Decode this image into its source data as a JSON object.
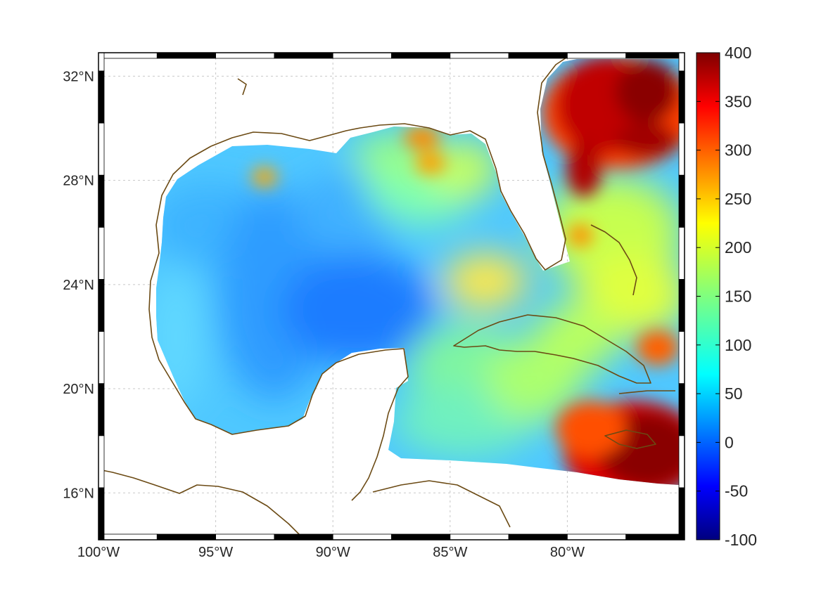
{
  "map": {
    "region": "Gulf of Mexico and Caribbean",
    "lon_range": [
      -100,
      -75
    ],
    "lat_range": [
      14.2,
      32.9
    ],
    "grid": true,
    "frame": "black-and-white checkered border",
    "coastline_color": "#6b4a14",
    "lon_ticks": [
      {
        "value": -100,
        "label": "100°W"
      },
      {
        "value": -95,
        "label": "95°W"
      },
      {
        "value": -90,
        "label": "90°W"
      },
      {
        "value": -85,
        "label": "85°W"
      },
      {
        "value": -80,
        "label": "80°W"
      }
    ],
    "lat_ticks": [
      {
        "value": 32,
        "label": "32°N"
      },
      {
        "value": 28,
        "label": "28°N"
      },
      {
        "value": 24,
        "label": "24°N"
      },
      {
        "value": 20,
        "label": "20°N"
      },
      {
        "value": 16,
        "label": "16°N"
      }
    ]
  },
  "colorbar": {
    "colormap": "jet",
    "range": [
      -100,
      400
    ],
    "ticks": [
      {
        "value": 400,
        "label": "400"
      },
      {
        "value": 350,
        "label": "350"
      },
      {
        "value": 300,
        "label": "300"
      },
      {
        "value": 250,
        "label": "250"
      },
      {
        "value": 200,
        "label": "200"
      },
      {
        "value": 150,
        "label": "150"
      },
      {
        "value": 100,
        "label": "100"
      },
      {
        "value": 50,
        "label": "50"
      },
      {
        "value": 0,
        "label": "0"
      },
      {
        "value": -50,
        "label": "-50"
      },
      {
        "value": -100,
        "label": "-100"
      }
    ]
  }
}
